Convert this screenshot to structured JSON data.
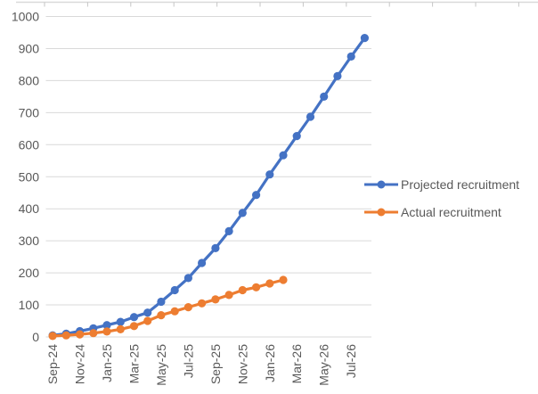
{
  "chart_data": {
    "type": "line",
    "title": "",
    "categories": [
      "Sep-24",
      "Oct-24",
      "Nov-24",
      "Dec-24",
      "Jan-25",
      "Feb-25",
      "Mar-25",
      "Apr-25",
      "May-25",
      "Jun-25",
      "Jul-25",
      "Aug-25",
      "Sep-25",
      "Oct-25",
      "Nov-25",
      "Dec-25",
      "Jan-26",
      "Feb-26",
      "Mar-26",
      "Apr-26",
      "May-26",
      "Jun-26",
      "Jul-26",
      "Aug-26"
    ],
    "x_tick_labels": [
      "Sep-24",
      "Nov-24",
      "Jan-25",
      "Mar-25",
      "May-25",
      "Jul-25",
      "Sep-25",
      "Nov-25",
      "Jan-26",
      "Mar-26",
      "May-26",
      "Jul-26"
    ],
    "x_tick_interval": 2,
    "series": [
      {
        "name": "Projected recruitment",
        "color": "#4472C4",
        "values": [
          5,
          10,
          18,
          27,
          37,
          47,
          62,
          76,
          110,
          146,
          184,
          231,
          277,
          330,
          387,
          443,
          507,
          567,
          627,
          687,
          750,
          814,
          875,
          933
        ]
      },
      {
        "name": "Actual recruitment",
        "color": "#ED7D31",
        "values": [
          3,
          5,
          8,
          12,
          17,
          24,
          34,
          50,
          68,
          80,
          93,
          105,
          117,
          131,
          146,
          155,
          167,
          178
        ]
      }
    ],
    "ylim": [
      0,
      1000
    ],
    "y_tick_step": 100,
    "y_tick_labels": [
      "0",
      "100",
      "200",
      "300",
      "400",
      "500",
      "600",
      "700",
      "800",
      "900",
      "1000"
    ],
    "grid": "horizontal",
    "legend_position": "right",
    "axis_text_color": "#595959",
    "gridline_color": "#D9D9D9",
    "background": "#FFFFFF"
  }
}
